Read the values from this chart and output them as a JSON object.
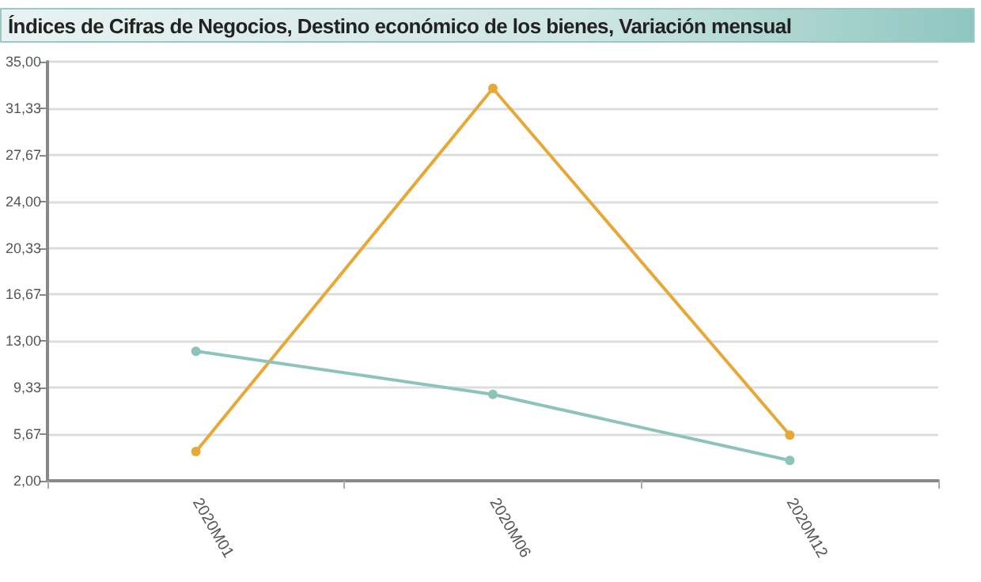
{
  "chart_data": {
    "type": "line",
    "title": "Índices de Cifras de Negocios, Destino económico de los bienes, Variación mensual",
    "categories": [
      "2020M01",
      "2020M06",
      "2020M12"
    ],
    "series": [
      {
        "color": "#e8a838",
        "values": [
          4.3,
          32.9,
          5.6
        ]
      },
      {
        "color": "#8cc4bc",
        "values": [
          12.2,
          8.8,
          3.6
        ]
      }
    ],
    "ylim": [
      2,
      35
    ],
    "yticks": [
      {
        "value": 2,
        "label": "2,00"
      },
      {
        "value": 5.67,
        "label": "5,67"
      },
      {
        "value": 9.33,
        "label": "9,33"
      },
      {
        "value": 13,
        "label": "13,00"
      },
      {
        "value": 16.67,
        "label": "16,67"
      },
      {
        "value": 20.33,
        "label": "20,33"
      },
      {
        "value": 24,
        "label": "24,00"
      },
      {
        "value": 27.67,
        "label": "27,67"
      },
      {
        "value": 31.33,
        "label": "31,33"
      },
      {
        "value": 35,
        "label": "35,00"
      }
    ],
    "grid": "y",
    "marker": "circle",
    "line_style": "solid"
  }
}
